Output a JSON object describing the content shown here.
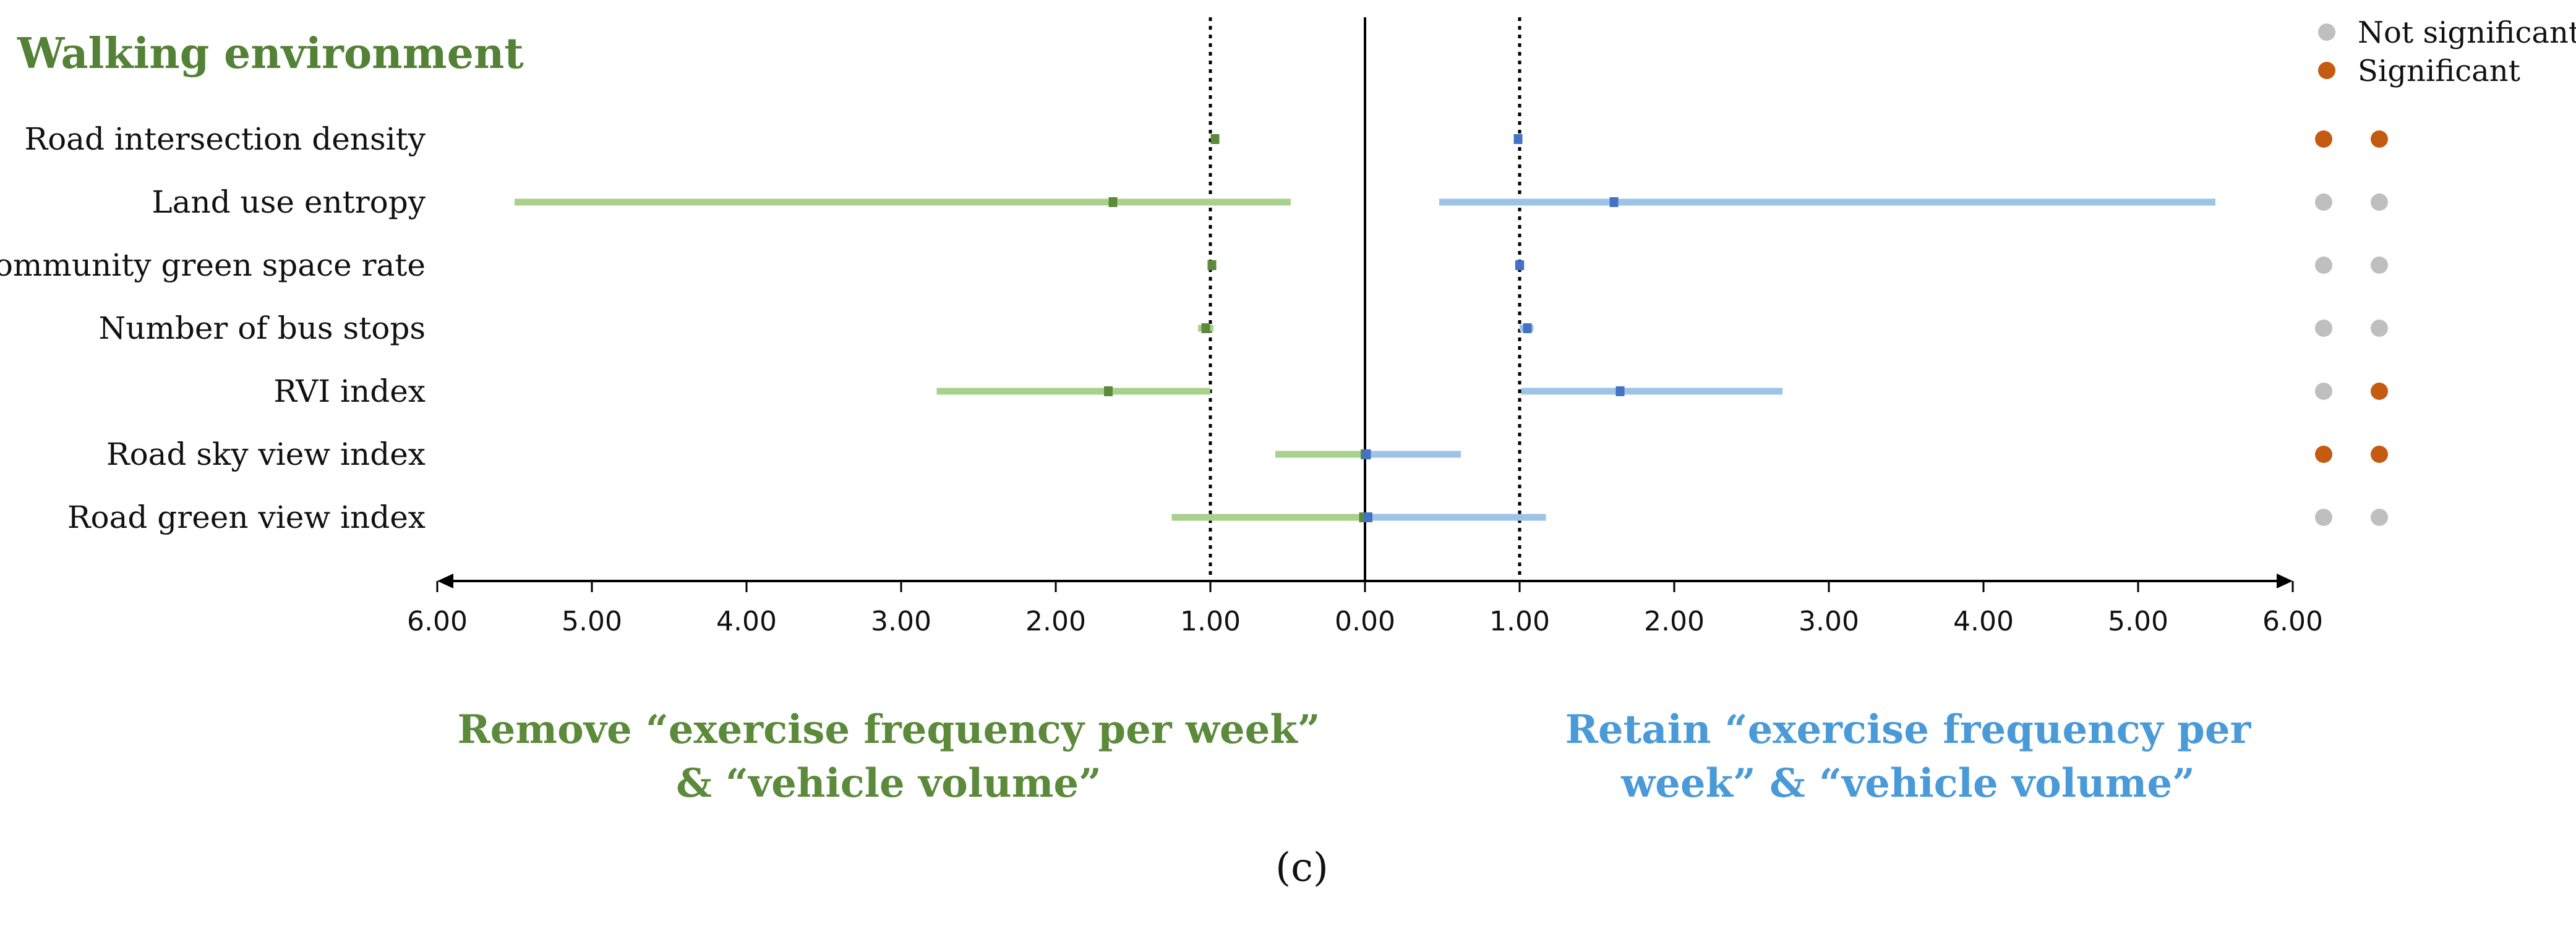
{
  "chart_data": {
    "type": "forest",
    "title": "Walking environment",
    "categories": [
      "Road intersection density",
      "Land use entropy",
      "Community green space rate",
      "Number of bus stops",
      "RVI index",
      "Road sky view index",
      "Road green view index"
    ],
    "x_ticks": [
      "6.00",
      "5.00",
      "4.00",
      "3.00",
      "2.00",
      "1.00",
      "0.00",
      "1.00",
      "2.00",
      "3.00",
      "4.00",
      "5.00",
      "6.00"
    ],
    "xlim_left": [
      6,
      0
    ],
    "xlim_right": [
      0,
      6
    ],
    "reference_lines": [
      1.0
    ],
    "series": [
      {
        "name": "Remove “exercise frequency per week” & “vehicle volume”",
        "side": "left",
        "color": "#5b8a3a",
        "bar_color": "#a9d18e",
        "estimates": [
          0.97,
          1.63,
          0.99,
          1.03,
          1.66,
          0.0,
          0.01
        ],
        "lower": [
          0.96,
          0.48,
          0.97,
          0.98,
          1.0,
          0.0,
          0.0
        ],
        "upper": [
          0.99,
          5.5,
          1.01,
          1.08,
          2.77,
          0.58,
          1.25
        ]
      },
      {
        "name": "Retain “exercise frequency per week” & “vehicle volume”",
        "side": "right",
        "color": "#4472c4",
        "bar_color": "#9dc3e6",
        "estimates": [
          0.99,
          1.61,
          1.0,
          1.05,
          1.65,
          0.01,
          0.02
        ],
        "lower": [
          0.97,
          0.48,
          0.97,
          1.0,
          1.01,
          0.0,
          0.0
        ],
        "upper": [
          1.01,
          5.5,
          1.03,
          1.09,
          2.7,
          0.62,
          1.17
        ]
      }
    ],
    "significance": {
      "left": [
        "Significant",
        "Not significant",
        "Not significant",
        "Not significant",
        "Not significant",
        "Significant",
        "Not significant"
      ],
      "right": [
        "Significant",
        "Not significant",
        "Not significant",
        "Not significant",
        "Significant",
        "Significant",
        "Not significant"
      ]
    },
    "legend": [
      {
        "label": "Not significant",
        "color": "#bfbfbf"
      },
      {
        "label": "Significant",
        "color": "#c55a11"
      }
    ],
    "left_label_lines": [
      "Remove “exercise frequency per week”",
      "& “vehicle volume”"
    ],
    "right_label_lines": [
      "Retain  “exercise frequency per",
      "week” & “vehicle volume”"
    ],
    "caption": "(c)",
    "colors": {
      "title": "#538135",
      "left_label": "#5b8a3a",
      "right_label": "#4a9ad8"
    }
  }
}
